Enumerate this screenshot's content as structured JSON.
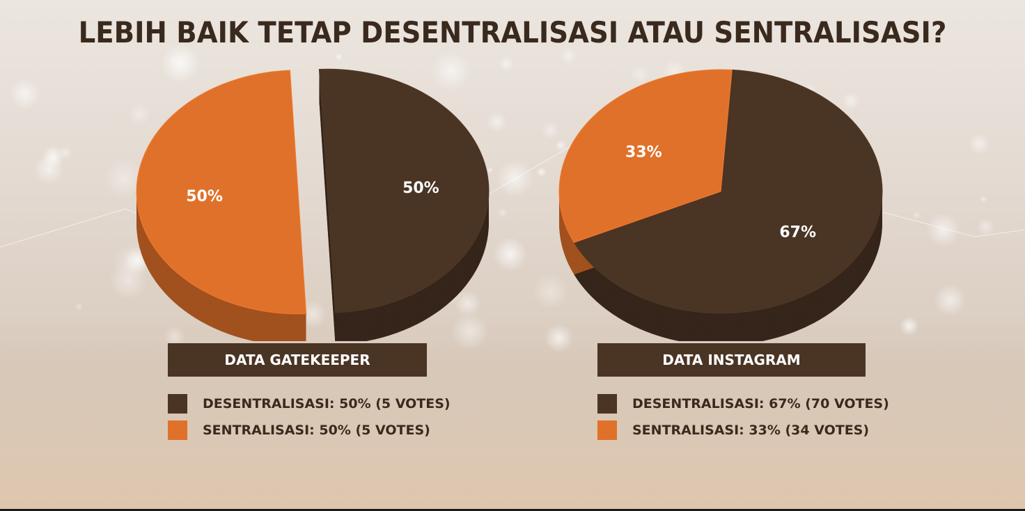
{
  "title": "LEBIH BAIK TETAP DESENTRALISASI ATAU SENTRALISASI?",
  "colors": {
    "desentralisasi": "#4a3424",
    "sentralisasi": "#e0712a",
    "text": "#3a2a1e"
  },
  "chart_data": [
    {
      "type": "pie",
      "title": "DATA GATEKEEPER",
      "categories": [
        "DESENTRALISASI",
        "SENTRALISASI"
      ],
      "values": [
        50,
        50
      ],
      "votes": [
        5,
        5
      ],
      "labels": [
        "50%",
        "50%"
      ],
      "legend": [
        "DESENTRALISASI: 50% (5 VOTES)",
        "SENTRALISASI: 50% (5 VOTES)"
      ]
    },
    {
      "type": "pie",
      "title": "DATA INSTAGRAM",
      "categories": [
        "DESENTRALISASI",
        "SENTRALISASI"
      ],
      "values": [
        67,
        33
      ],
      "votes": [
        70,
        34
      ],
      "labels": [
        "67%",
        "33%"
      ],
      "legend": [
        "DESENTRALISASI: 67% (70 VOTES)",
        "SENTRALISASI: 33% (34 VOTES)"
      ]
    }
  ]
}
